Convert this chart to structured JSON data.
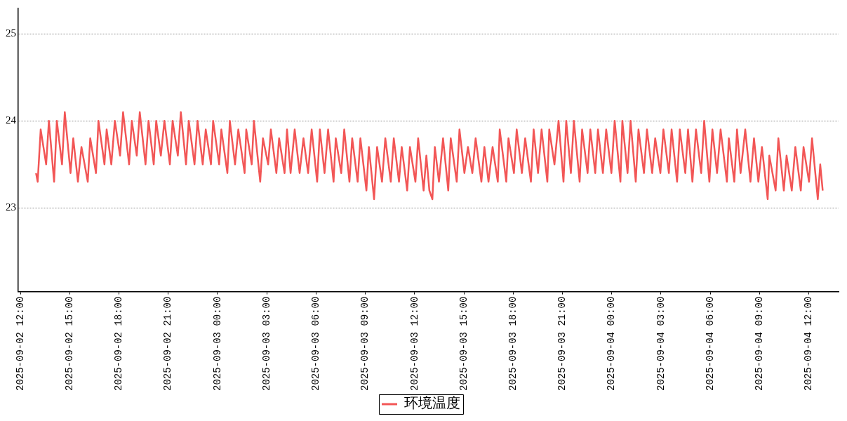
{
  "chart_data": {
    "type": "line",
    "xlim": [
      "2025-09-02T11:52",
      "2025-09-04T13:49"
    ],
    "ylim": [
      22.04,
      25.29
    ],
    "xticks": [
      {
        "value": "2025-09-02T12:00",
        "label": "2025-09-02 12:00"
      },
      {
        "value": "2025-09-02T15:00",
        "label": "2025-09-02 15:00"
      },
      {
        "value": "2025-09-02T18:00",
        "label": "2025-09-02 18:00"
      },
      {
        "value": "2025-09-02T21:00",
        "label": "2025-09-02 21:00"
      },
      {
        "value": "2025-09-03T00:00",
        "label": "2025-09-03 00:00"
      },
      {
        "value": "2025-09-03T03:00",
        "label": "2025-09-03 03:00"
      },
      {
        "value": "2025-09-03T06:00",
        "label": "2025-09-03 06:00"
      },
      {
        "value": "2025-09-03T09:00",
        "label": "2025-09-03 09:00"
      },
      {
        "value": "2025-09-03T12:00",
        "label": "2025-09-03 12:00"
      },
      {
        "value": "2025-09-03T15:00",
        "label": "2025-09-03 15:00"
      },
      {
        "value": "2025-09-03T18:00",
        "label": "2025-09-03 18:00"
      },
      {
        "value": "2025-09-03T21:00",
        "label": "2025-09-03 21:00"
      },
      {
        "value": "2025-09-04T00:00",
        "label": "2025-09-04 00:00"
      },
      {
        "value": "2025-09-04T03:00",
        "label": "2025-09-04 03:00"
      },
      {
        "value": "2025-09-04T06:00",
        "label": "2025-09-04 06:00"
      },
      {
        "value": "2025-09-04T09:00",
        "label": "2025-09-04 09:00"
      },
      {
        "value": "2025-09-04T12:00",
        "label": "2025-09-04 12:00"
      }
    ],
    "yticks": [
      23,
      24,
      25
    ],
    "grid": "y",
    "legend": "bottom",
    "marker": "none",
    "line_style": "solid",
    "series": [
      {
        "name": "环境温度",
        "color": "#f25656",
        "x": [
          "2025-09-02T12:57",
          "2025-09-02T13:03",
          "2025-09-02T13:14",
          "2025-09-02T13:34",
          "2025-09-02T13:44",
          "2025-09-02T14:03",
          "2025-09-02T14:13",
          "2025-09-02T14:32",
          "2025-09-02T14:42",
          "2025-09-02T15:03",
          "2025-09-02T15:13",
          "2025-09-02T15:30",
          "2025-09-02T15:43",
          "2025-09-02T16:06",
          "2025-09-02T16:15",
          "2025-09-02T16:36",
          "2025-09-02T16:45",
          "2025-09-02T17:07",
          "2025-09-02T17:15",
          "2025-09-02T17:32",
          "2025-09-02T17:45",
          "2025-09-02T18:04",
          "2025-09-02T18:15",
          "2025-09-02T18:37",
          "2025-09-02T18:47",
          "2025-09-02T19:05",
          "2025-09-02T19:16",
          "2025-09-02T19:37",
          "2025-09-02T19:48",
          "2025-09-02T20:07",
          "2025-09-02T20:16",
          "2025-09-02T20:33",
          "2025-09-02T20:46",
          "2025-09-02T21:06",
          "2025-09-02T21:16",
          "2025-09-02T21:35",
          "2025-09-02T21:46",
          "2025-09-02T22:05",
          "2025-09-02T22:15",
          "2025-09-02T22:36",
          "2025-09-02T22:47",
          "2025-09-02T23:06",
          "2025-09-02T23:17",
          "2025-09-02T23:36",
          "2025-09-02T23:44",
          "2025-09-03T00:06",
          "2025-09-03T00:14",
          "2025-09-03T00:36",
          "2025-09-03T00:45",
          "2025-09-03T01:04",
          "2025-09-03T01:16",
          "2025-09-03T01:39",
          "2025-09-03T01:45",
          "2025-09-03T02:05",
          "2025-09-03T02:13",
          "2025-09-03T02:36",
          "2025-09-03T02:46",
          "2025-09-03T03:05",
          "2025-09-03T03:15",
          "2025-09-03T03:35",
          "2025-09-03T03:45",
          "2025-09-03T04:05",
          "2025-09-03T04:14",
          "2025-09-03T04:27",
          "2025-09-03T04:42",
          "2025-09-03T05:00",
          "2025-09-03T05:14",
          "2025-09-03T05:31",
          "2025-09-03T05:44",
          "2025-09-03T06:04",
          "2025-09-03T06:14",
          "2025-09-03T06:31",
          "2025-09-03T06:44",
          "2025-09-03T07:04",
          "2025-09-03T07:12",
          "2025-09-03T07:32",
          "2025-09-03T07:43",
          "2025-09-03T08:02",
          "2025-09-03T08:12",
          "2025-09-03T08:32",
          "2025-09-03T08:42",
          "2025-09-03T09:04",
          "2025-09-03T09:13",
          "2025-09-03T09:32",
          "2025-09-03T09:43",
          "2025-09-03T10:01",
          "2025-09-03T10:13",
          "2025-09-03T10:33",
          "2025-09-03T10:44",
          "2025-09-03T11:03",
          "2025-09-03T11:13",
          "2025-09-03T11:33",
          "2025-09-03T11:43",
          "2025-09-03T12:03",
          "2025-09-03T12:13",
          "2025-09-03T12:33",
          "2025-09-03T12:43",
          "2025-09-03T12:54",
          "2025-09-03T13:05",
          "2025-09-03T13:14",
          "2025-09-03T13:29",
          "2025-09-03T13:44",
          "2025-09-03T14:03",
          "2025-09-03T14:12",
          "2025-09-03T14:34",
          "2025-09-03T14:44",
          "2025-09-03T15:02",
          "2025-09-03T15:15",
          "2025-09-03T15:31",
          "2025-09-03T15:43",
          "2025-09-03T16:04",
          "2025-09-03T16:15",
          "2025-09-03T16:30",
          "2025-09-03T16:45",
          "2025-09-03T17:04",
          "2025-09-03T17:11",
          "2025-09-03T17:35",
          "2025-09-03T17:43",
          "2025-09-03T18:03",
          "2025-09-03T18:13",
          "2025-09-03T18:32",
          "2025-09-03T18:44",
          "2025-09-03T19:05",
          "2025-09-03T19:15",
          "2025-09-03T19:31",
          "2025-09-03T19:44",
          "2025-09-03T20:05",
          "2025-09-03T20:12",
          "2025-09-03T20:31",
          "2025-09-03T20:46",
          "2025-09-03T21:04",
          "2025-09-03T21:14",
          "2025-09-03T21:31",
          "2025-09-03T21:42",
          "2025-09-03T22:03",
          "2025-09-03T22:12",
          "2025-09-03T22:32",
          "2025-09-03T22:42",
          "2025-09-03T23:00",
          "2025-09-03T23:10",
          "2025-09-03T23:28",
          "2025-09-03T23:40",
          "2025-09-03T23:59",
          "2025-09-04T00:11",
          "2025-09-04T00:32",
          "2025-09-04T00:39",
          "2025-09-04T00:58",
          "2025-09-04T01:09",
          "2025-09-04T01:28",
          "2025-09-04T01:38",
          "2025-09-04T01:58",
          "2025-09-04T02:09",
          "2025-09-04T02:28",
          "2025-09-04T02:39",
          "2025-09-04T02:58",
          "2025-09-04T03:09",
          "2025-09-04T03:29",
          "2025-09-04T03:39",
          "2025-09-04T03:59",
          "2025-09-04T04:09",
          "2025-09-04T04:29",
          "2025-09-04T04:39",
          "2025-09-04T04:55",
          "2025-09-04T05:08",
          "2025-09-04T05:27",
          "2025-09-04T05:38",
          "2025-09-04T05:57",
          "2025-09-04T06:08",
          "2025-09-04T06:25",
          "2025-09-04T06:38",
          "2025-09-04T07:01",
          "2025-09-04T07:08",
          "2025-09-04T07:28",
          "2025-09-04T07:38",
          "2025-09-04T07:51",
          "2025-09-04T08:08",
          "2025-09-04T08:27",
          "2025-09-04T08:40",
          "2025-09-04T08:56",
          "2025-09-04T09:09",
          "2025-09-04T09:30",
          "2025-09-04T09:36",
          "2025-09-04T09:59",
          "2025-09-04T10:09",
          "2025-09-04T10:29",
          "2025-09-04T10:39",
          "2025-09-04T10:58",
          "2025-09-04T11:11",
          "2025-09-04T11:31",
          "2025-09-04T11:41",
          "2025-09-04T12:01",
          "2025-09-04T12:12",
          "2025-09-04T12:33",
          "2025-09-04T12:42",
          "2025-09-04T12:51"
        ],
        "values": [
          23.4,
          23.3,
          23.9,
          23.5,
          24.0,
          23.3,
          24.0,
          23.5,
          24.1,
          23.4,
          23.8,
          23.3,
          23.7,
          23.3,
          23.8,
          23.4,
          24.0,
          23.5,
          23.9,
          23.5,
          24.0,
          23.6,
          24.1,
          23.5,
          24.0,
          23.6,
          24.1,
          23.5,
          24.0,
          23.5,
          24.0,
          23.6,
          24.0,
          23.5,
          24.0,
          23.6,
          24.1,
          23.5,
          24.0,
          23.5,
          24.0,
          23.5,
          23.9,
          23.5,
          24.0,
          23.5,
          23.9,
          23.4,
          24.0,
          23.5,
          23.9,
          23.4,
          23.9,
          23.5,
          24.0,
          23.3,
          23.8,
          23.5,
          23.9,
          23.4,
          23.8,
          23.4,
          23.9,
          23.4,
          23.9,
          23.4,
          23.8,
          23.4,
          23.9,
          23.3,
          23.9,
          23.4,
          23.9,
          23.3,
          23.8,
          23.4,
          23.9,
          23.3,
          23.8,
          23.3,
          23.8,
          23.2,
          23.7,
          23.1,
          23.7,
          23.3,
          23.8,
          23.3,
          23.8,
          23.3,
          23.7,
          23.2,
          23.7,
          23.3,
          23.8,
          23.2,
          23.6,
          23.2,
          23.1,
          23.7,
          23.3,
          23.8,
          23.2,
          23.8,
          23.3,
          23.9,
          23.4,
          23.7,
          23.4,
          23.8,
          23.3,
          23.7,
          23.3,
          23.7,
          23.3,
          23.9,
          23.3,
          23.8,
          23.4,
          23.9,
          23.4,
          23.8,
          23.3,
          23.9,
          23.4,
          23.9,
          23.3,
          23.9,
          23.5,
          24.0,
          23.3,
          24.0,
          23.4,
          24.0,
          23.3,
          23.9,
          23.4,
          23.9,
          23.4,
          23.9,
          23.4,
          23.9,
          23.4,
          24.0,
          23.3,
          24.0,
          23.4,
          24.0,
          23.3,
          23.9,
          23.4,
          23.9,
          23.4,
          23.8,
          23.4,
          23.9,
          23.4,
          23.9,
          23.3,
          23.9,
          23.4,
          23.9,
          23.3,
          23.9,
          23.4,
          24.0,
          23.3,
          23.9,
          23.4,
          23.9,
          23.3,
          23.8,
          23.3,
          23.9,
          23.4,
          23.9,
          23.3,
          23.8,
          23.3,
          23.7,
          23.1,
          23.6,
          23.2,
          23.8,
          23.2,
          23.6,
          23.2,
          23.7,
          23.2,
          23.7,
          23.3,
          23.8,
          23.1,
          23.5,
          23.2
        ]
      }
    ]
  }
}
